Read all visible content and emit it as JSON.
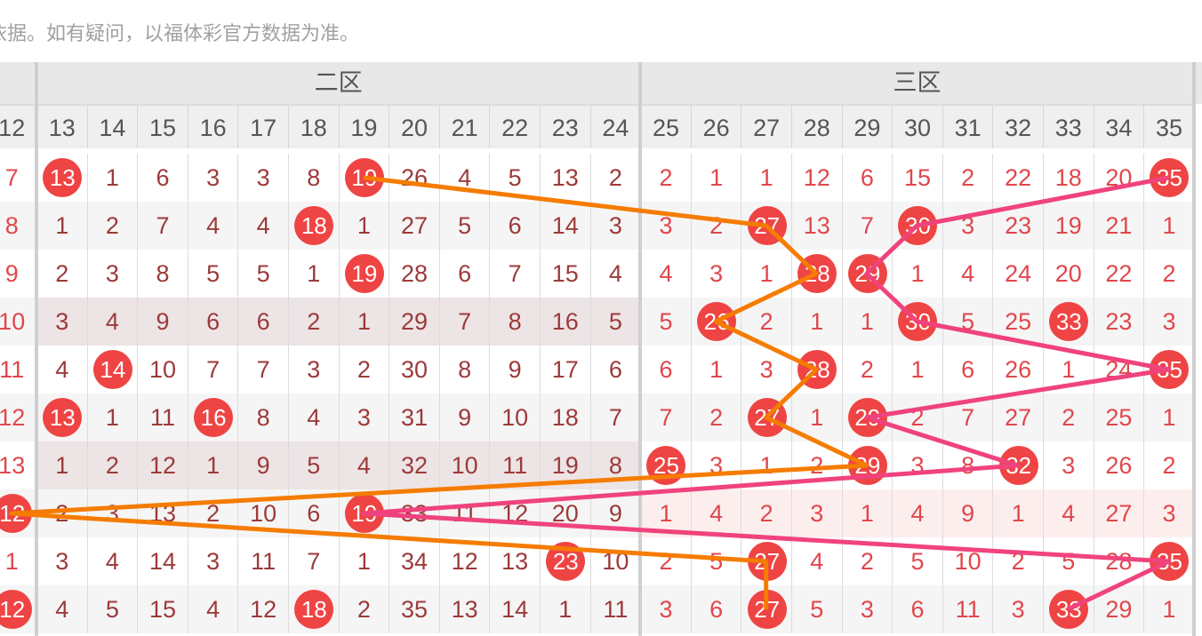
{
  "notice": "依据。如有疑问，以福体彩官方数据为准。",
  "zones": [
    {
      "label": "二区",
      "from": 13,
      "to": 24
    },
    {
      "label": "三区",
      "from": 25,
      "to": 35
    }
  ],
  "columns": [
    12,
    13,
    14,
    15,
    16,
    17,
    18,
    19,
    20,
    21,
    22,
    23,
    24,
    25,
    26,
    27,
    28,
    29,
    30,
    31,
    32,
    33,
    34,
    35
  ],
  "rows": [
    {
      "values": [
        7,
        13,
        1,
        6,
        3,
        3,
        8,
        19,
        26,
        4,
        5,
        13,
        2,
        2,
        1,
        1,
        12,
        6,
        15,
        2,
        22,
        18,
        20,
        35
      ],
      "hits": [
        13,
        19,
        35
      ]
    },
    {
      "values": [
        8,
        1,
        2,
        7,
        4,
        4,
        18,
        1,
        27,
        5,
        6,
        14,
        3,
        3,
        2,
        27,
        13,
        7,
        30,
        3,
        23,
        19,
        21,
        1
      ],
      "hits": [
        18,
        27,
        30
      ]
    },
    {
      "values": [
        9,
        2,
        3,
        8,
        5,
        5,
        1,
        19,
        28,
        6,
        7,
        15,
        4,
        4,
        3,
        1,
        28,
        29,
        1,
        4,
        24,
        20,
        22,
        2
      ],
      "hits": [
        19,
        28,
        29
      ]
    },
    {
      "values": [
        10,
        3,
        4,
        9,
        6,
        6,
        2,
        1,
        29,
        7,
        8,
        16,
        5,
        5,
        26,
        2,
        1,
        1,
        30,
        5,
        25,
        33,
        23,
        3
      ],
      "hits": [
        26,
        30,
        33
      ]
    },
    {
      "values": [
        11,
        4,
        14,
        10,
        7,
        7,
        3,
        2,
        30,
        8,
        9,
        17,
        6,
        6,
        1,
        3,
        28,
        2,
        1,
        6,
        26,
        1,
        24,
        35
      ],
      "hits": [
        14,
        28,
        35
      ]
    },
    {
      "values": [
        12,
        13,
        1,
        11,
        16,
        8,
        4,
        3,
        31,
        9,
        10,
        18,
        7,
        7,
        2,
        27,
        1,
        29,
        2,
        7,
        27,
        2,
        25,
        1
      ],
      "hits": [
        13,
        16,
        27,
        29
      ]
    },
    {
      "values": [
        13,
        1,
        2,
        12,
        1,
        9,
        5,
        4,
        32,
        10,
        11,
        19,
        8,
        25,
        3,
        1,
        2,
        29,
        3,
        8,
        32,
        3,
        26,
        2
      ],
      "hits": [
        25,
        29,
        32
      ]
    },
    {
      "values": [
        12,
        2,
        3,
        13,
        2,
        10,
        6,
        19,
        33,
        11,
        12,
        20,
        9,
        1,
        4,
        2,
        3,
        1,
        4,
        9,
        1,
        4,
        27,
        3
      ],
      "hits": [
        12,
        19
      ]
    },
    {
      "values": [
        1,
        3,
        4,
        14,
        3,
        11,
        7,
        1,
        34,
        12,
        13,
        23,
        10,
        2,
        5,
        27,
        4,
        2,
        5,
        10,
        2,
        5,
        28,
        35
      ],
      "hits": [
        23,
        27,
        35
      ]
    },
    {
      "values": [
        12,
        4,
        5,
        15,
        4,
        12,
        18,
        2,
        35,
        13,
        14,
        1,
        11,
        3,
        6,
        27,
        5,
        3,
        6,
        11,
        3,
        33,
        29,
        1
      ],
      "hits": [
        12,
        18,
        27,
        33
      ]
    }
  ],
  "trend_lines": [
    {
      "color": "#f57c00",
      "numbers": [
        19,
        27,
        28,
        26,
        28,
        27,
        29,
        12,
        27,
        27
      ]
    },
    {
      "color": "#f0437e",
      "numbers": [
        35,
        30,
        29,
        30,
        35,
        29,
        32,
        19,
        35,
        33
      ]
    }
  ],
  "colors": {
    "ball": "#ef4444",
    "zone2_text": "#9d3a3a",
    "zone3_text": "#e0474c"
  }
}
